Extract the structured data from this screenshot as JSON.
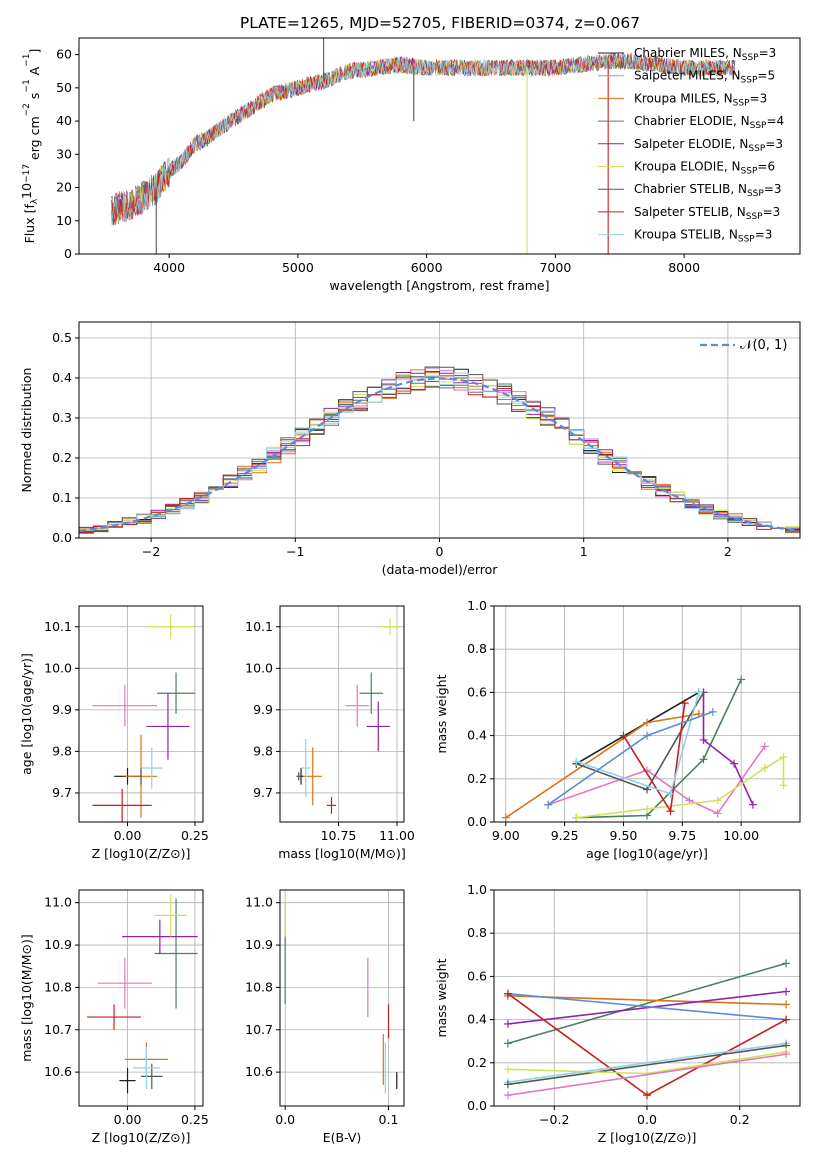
{
  "figure_title": "PLATE=1265, MJD=52705, FIBERID=0374, z=0.067",
  "colors": [
    "#1f1f1f",
    "#e377c2",
    "#d97316",
    "#4f7f5f",
    "#8e24aa",
    "#d4e157",
    "#555555",
    "#c81e1e",
    "#8fd3e8"
  ],
  "chart_data": [
    {
      "id": "spectrum",
      "type": "line",
      "title": "PLATE=1265, MJD=52705, FIBERID=0374, z=0.067",
      "xlabel": "wavelength [Angstrom, rest frame]",
      "ylabel": "Flux [f_λ 10^-17 erg cm^-2 s^-1 A^-1]",
      "xlim": [
        3300,
        8900
      ],
      "ylim": [
        0,
        65
      ],
      "xticks": [
        4000,
        5000,
        6000,
        7000,
        8000
      ],
      "yticks": [
        0,
        10,
        20,
        30,
        40,
        50,
        60
      ],
      "grid": false,
      "legend_position": "right",
      "legend": [
        "Chabrier MILES, N_SSP=3",
        "Salpeter MILES, N_SSP=5",
        "Kroupa MILES, N_SSP=3",
        "Chabrier ELODIE, N_SSP=4",
        "Salpeter ELODIE, N_SSP=3",
        "Kroupa ELODIE, N_SSP=6",
        "Chabrier STELIB, N_SSP=3",
        "Salpeter STELIB, N_SSP=3",
        "Kroupa STELIB, N_SSP=3"
      ],
      "continuum": {
        "x": [
          3550,
          3700,
          3800,
          3900,
          4000,
          4100,
          4200,
          4300,
          4400,
          4600,
          4800,
          5000,
          5200,
          5400,
          5600,
          5800,
          6000,
          6200,
          6400,
          6600,
          6800,
          7000,
          7200,
          7400,
          7600,
          7800,
          8000,
          8200,
          8400
        ],
        "y": [
          13,
          15,
          17,
          20,
          25,
          28,
          33,
          35,
          38,
          43,
          48,
          50,
          52,
          55,
          56,
          57,
          56,
          56,
          56,
          56,
          56,
          56,
          57,
          58,
          58,
          57,
          56,
          56,
          56
        ]
      },
      "dips": [
        {
          "x": 3900,
          "y": 0
        },
        {
          "x": 5200,
          "y": 65
        },
        {
          "x": 5900,
          "y": 40
        },
        {
          "x": 6780,
          "y": 0
        },
        {
          "x": 7410,
          "y": 0
        }
      ]
    },
    {
      "id": "residual_hist",
      "type": "histogram",
      "xlabel": "(data-model)/error",
      "ylabel": "Normed distribution",
      "xlim": [
        -2.5,
        2.5
      ],
      "ylim": [
        0,
        0.54
      ],
      "xticks": [
        -2,
        -1,
        0,
        1,
        2
      ],
      "yticks": [
        0.0,
        0.1,
        0.2,
        0.3,
        0.4,
        0.5
      ],
      "grid": true,
      "legend": [
        "N(0,1)"
      ],
      "bin_edges_start": -2.5,
      "bin_width": 0.1,
      "n_bins": 50
    },
    {
      "id": "age_vs_Z",
      "type": "errorbar",
      "xlabel": "Z [log10(Z/Z⊙)]",
      "ylabel": "age [log10(age/yr)]",
      "xlim": [
        -0.18,
        0.28
      ],
      "ylim": [
        9.63,
        10.15
      ],
      "xticks": [
        0.0,
        0.25
      ],
      "yticks": [
        9.7,
        9.8,
        9.9,
        10.0,
        10.1
      ],
      "grid": true,
      "points": [
        {
          "x": 0.0,
          "xerr": 0.05,
          "y": 9.74,
          "yerr": 0.02,
          "series": 0
        },
        {
          "x": -0.01,
          "xerr": 0.12,
          "y": 9.91,
          "yerr": 0.05,
          "series": 1
        },
        {
          "x": 0.05,
          "xerr": 0.06,
          "y": 9.74,
          "yerr": 0.1,
          "series": 2
        },
        {
          "x": 0.18,
          "xerr": 0.07,
          "y": 9.94,
          "yerr": 0.05,
          "series": 3
        },
        {
          "x": 0.15,
          "xerr": 0.08,
          "y": 9.86,
          "yerr": 0.08,
          "series": 4
        },
        {
          "x": 0.16,
          "xerr": 0.09,
          "y": 10.1,
          "yerr": 0.03,
          "series": 5
        },
        {
          "x": 0.05,
          "xerr": 0.0,
          "y": 9.74,
          "yerr": 0.02,
          "series": 6
        },
        {
          "x": -0.02,
          "xerr": 0.11,
          "y": 9.67,
          "yerr": 0.04,
          "series": 7
        },
        {
          "x": 0.09,
          "xerr": 0.04,
          "y": 9.76,
          "yerr": 0.05,
          "series": 8
        }
      ]
    },
    {
      "id": "age_vs_mass",
      "type": "errorbar",
      "xlabel": "mass [log10(M/M⊙)]",
      "ylabel": "",
      "xlim": [
        10.5,
        11.03
      ],
      "ylim": [
        9.63,
        10.15
      ],
      "xticks": [
        10.75,
        11.0
      ],
      "yticks": [
        9.7,
        9.8,
        9.9,
        10.0,
        10.1
      ],
      "grid": true,
      "points": [
        {
          "x": 10.59,
          "xerr": 0.01,
          "y": 9.74,
          "yerr": 0.02,
          "series": 0
        },
        {
          "x": 10.83,
          "xerr": 0.05,
          "y": 9.91,
          "yerr": 0.05,
          "series": 1
        },
        {
          "x": 10.64,
          "xerr": 0.04,
          "y": 9.74,
          "yerr": 0.07,
          "series": 2
        },
        {
          "x": 10.89,
          "xerr": 0.05,
          "y": 9.94,
          "yerr": 0.05,
          "series": 3
        },
        {
          "x": 10.92,
          "xerr": 0.05,
          "y": 9.86,
          "yerr": 0.06,
          "series": 4
        },
        {
          "x": 10.97,
          "xerr": 0.04,
          "y": 10.1,
          "yerr": 0.02,
          "series": 5
        },
        {
          "x": 10.58,
          "xerr": 0.01,
          "y": 9.74,
          "yerr": 0.01,
          "series": 6
        },
        {
          "x": 10.72,
          "xerr": 0.02,
          "y": 9.67,
          "yerr": 0.02,
          "series": 7
        },
        {
          "x": 10.61,
          "xerr": 0.02,
          "y": 9.76,
          "yerr": 0.07,
          "series": 8
        }
      ]
    },
    {
      "id": "weight_vs_age",
      "type": "line",
      "xlabel": "age [log10(age/yr)]",
      "ylabel": "mass weight",
      "xlim": [
        8.95,
        10.25
      ],
      "ylim": [
        0,
        1
      ],
      "xticks": [
        9.0,
        9.25,
        9.5,
        9.75,
        10.0
      ],
      "yticks": [
        0.0,
        0.2,
        0.4,
        0.6,
        0.8,
        1.0
      ],
      "grid": true,
      "series": [
        {
          "series": 0,
          "x": [
            9.3,
            9.82
          ],
          "y": [
            0.27,
            0.6
          ]
        },
        {
          "series": 1,
          "x": [
            9.18,
            9.6,
            9.78,
            9.9,
            10.1
          ],
          "y": [
            0.08,
            0.24,
            0.1,
            0.04,
            0.35
          ]
        },
        {
          "series": 2,
          "x": [
            9.0,
            9.6,
            9.82
          ],
          "y": [
            0.02,
            0.46,
            0.5
          ]
        },
        {
          "series": 3,
          "x": [
            9.3,
            9.6,
            9.84,
            10.0
          ],
          "y": [
            0.02,
            0.03,
            0.29,
            0.66
          ]
        },
        {
          "series": 4,
          "x": [
            9.84,
            9.84,
            9.97,
            10.05
          ],
          "y": [
            0.6,
            0.38,
            0.27,
            0.08
          ]
        },
        {
          "series": 5,
          "x": [
            9.3,
            9.6,
            9.9,
            10.1,
            10.18,
            10.18
          ],
          "y": [
            0.02,
            0.06,
            0.1,
            0.25,
            0.3,
            0.17
          ]
        },
        {
          "series": 6,
          "x": [
            9.3,
            9.6,
            9.84
          ],
          "y": [
            0.27,
            0.15,
            0.6
          ]
        },
        {
          "series": 7,
          "x": [
            9.5,
            9.7,
            9.76
          ],
          "y": [
            0.4,
            0.05,
            0.55
          ]
        },
        {
          "series": 8,
          "x": [
            9.3,
            9.7,
            9.82
          ],
          "y": [
            0.28,
            0.13,
            0.6
          ]
        },
        {
          "series": 10,
          "x": [
            9.18,
            9.6,
            9.88
          ],
          "y": [
            0.08,
            0.4,
            0.51
          ]
        }
      ]
    },
    {
      "id": "mass_vs_Z",
      "type": "errorbar",
      "xlabel": "Z [log10(Z/Z⊙)]",
      "ylabel": "mass [log10(M/M⊙)]",
      "xlim": [
        -0.18,
        0.28
      ],
      "ylim": [
        10.52,
        11.03
      ],
      "xticks": [
        0.0,
        0.25
      ],
      "yticks": [
        10.6,
        10.7,
        10.8,
        10.9,
        11.0
      ],
      "grid": true,
      "points": [
        {
          "x": 0.0,
          "xerr": 0.03,
          "y": 10.58,
          "yerr": 0.03,
          "series": 0
        },
        {
          "x": -0.01,
          "xerr": 0.1,
          "y": 10.81,
          "yerr": 0.06,
          "series": 1
        },
        {
          "x": 0.07,
          "xerr": 0.08,
          "y": 10.63,
          "yerr": 0.04,
          "series": 2
        },
        {
          "x": 0.18,
          "xerr": 0.08,
          "y": 10.88,
          "yerr": 0.13,
          "series": 3
        },
        {
          "x": 0.12,
          "xerr": 0.14,
          "y": 10.92,
          "yerr": 0.04,
          "series": 4
        },
        {
          "x": 0.16,
          "xerr": 0.06,
          "y": 10.97,
          "yerr": 0.05,
          "series": 5
        },
        {
          "x": 0.09,
          "xerr": 0.04,
          "y": 10.59,
          "yerr": 0.03,
          "series": 6
        },
        {
          "x": -0.05,
          "xerr": 0.1,
          "y": 10.73,
          "yerr": 0.03,
          "series": 7
        },
        {
          "x": 0.07,
          "xerr": 0.05,
          "y": 10.61,
          "yerr": 0.05,
          "series": 8
        }
      ]
    },
    {
      "id": "mass_vs_ebv",
      "type": "errorbar",
      "xlabel": "E(B-V)",
      "ylabel": "",
      "xlim": [
        -0.005,
        0.115
      ],
      "ylim": [
        10.52,
        11.03
      ],
      "xticks": [
        0.0,
        0.1
      ],
      "yticks": [
        10.6,
        10.7,
        10.8,
        10.9,
        11.0
      ],
      "grid": true,
      "points": [
        {
          "x": 0.0,
          "y": 10.88,
          "yerr": 0.12,
          "series": 3
        },
        {
          "x": 0.0,
          "y": 10.97,
          "yerr": 0.05,
          "series": 5
        },
        {
          "x": 0.08,
          "y": 10.8,
          "yerr": 0.07,
          "series": 1
        },
        {
          "x": 0.095,
          "y": 10.63,
          "yerr": 0.06,
          "series": 2
        },
        {
          "x": 0.097,
          "y": 10.61,
          "yerr": 0.06,
          "series": 8
        },
        {
          "x": 0.1,
          "y": 10.72,
          "yerr": 0.04,
          "series": 7
        },
        {
          "x": 0.108,
          "y": 10.58,
          "yerr": 0.02,
          "series": 0
        }
      ]
    },
    {
      "id": "weight_vs_Z",
      "type": "line",
      "xlabel": "Z [log10(Z/Z⊙)]",
      "ylabel": "mass weight",
      "xlim": [
        -0.33,
        0.33
      ],
      "ylim": [
        0,
        1
      ],
      "xticks": [
        -0.2,
        0.0,
        0.2
      ],
      "yticks": [
        0.0,
        0.2,
        0.4,
        0.6,
        0.8,
        1.0
      ],
      "grid": true,
      "series": [
        {
          "series": 3,
          "x": [
            -0.3,
            0.3
          ],
          "y": [
            0.29,
            0.66
          ]
        },
        {
          "series": 2,
          "x": [
            -0.3,
            0.3
          ],
          "y": [
            0.51,
            0.47
          ]
        },
        {
          "series": 4,
          "x": [
            -0.3,
            0.3
          ],
          "y": [
            0.38,
            0.53
          ]
        },
        {
          "series": 10,
          "x": [
            -0.3,
            0.3
          ],
          "y": [
            0.52,
            0.4
          ]
        },
        {
          "series": 7,
          "x": [
            -0.3,
            0.0,
            0.3
          ],
          "y": [
            0.52,
            0.05,
            0.4
          ]
        },
        {
          "series": 8,
          "x": [
            -0.3,
            0.3
          ],
          "y": [
            0.11,
            0.29
          ]
        },
        {
          "series": 6,
          "x": [
            -0.3,
            0.3
          ],
          "y": [
            0.1,
            0.28
          ]
        },
        {
          "series": 5,
          "x": [
            -0.3,
            0.0,
            0.3
          ],
          "y": [
            0.17,
            0.15,
            0.25
          ]
        },
        {
          "series": 1,
          "x": [
            -0.3,
            0.3
          ],
          "y": [
            0.05,
            0.24
          ]
        }
      ]
    }
  ]
}
